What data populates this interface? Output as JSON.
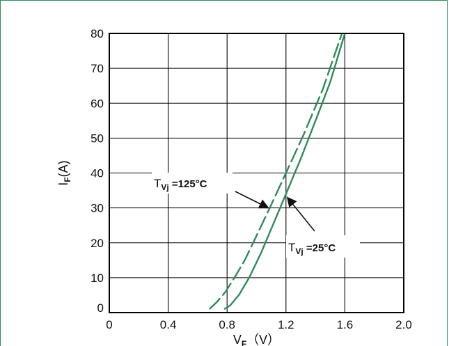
{
  "chart_data": {
    "type": "line",
    "title": "",
    "xlabel": {
      "main": "V",
      "sub": "F",
      "unit": "（V）"
    },
    "ylabel": {
      "main": "I",
      "sub": "F",
      "unit": "(A)"
    },
    "xlim": [
      0,
      2.0
    ],
    "ylim": [
      0,
      80
    ],
    "x_ticks": [
      "0",
      "0.4",
      "0.8",
      "1.2",
      "1.6",
      "2.0"
    ],
    "y_ticks": [
      "0",
      "10",
      "20",
      "30",
      "40",
      "50",
      "60",
      "70",
      "80"
    ],
    "grid": true,
    "series": [
      {
        "name": "Tvj=125°C",
        "style": "dashed",
        "color": "#2e8b57",
        "points": [
          [
            0.68,
            1
          ],
          [
            0.73,
            3
          ],
          [
            0.79,
            6
          ],
          [
            0.85,
            10
          ],
          [
            0.92,
            15
          ],
          [
            1.0,
            22
          ],
          [
            1.09,
            30
          ],
          [
            1.2,
            40
          ],
          [
            1.32,
            51
          ],
          [
            1.45,
            64
          ],
          [
            1.58,
            80
          ]
        ]
      },
      {
        "name": "Tvj=25°C",
        "style": "solid",
        "color": "#2e8b57",
        "points": [
          [
            0.78,
            1
          ],
          [
            0.82,
            2
          ],
          [
            0.88,
            5
          ],
          [
            0.95,
            10
          ],
          [
            1.03,
            17
          ],
          [
            1.11,
            25
          ],
          [
            1.2,
            34
          ],
          [
            1.3,
            44
          ],
          [
            1.41,
            56
          ],
          [
            1.5,
            66
          ],
          [
            1.6,
            80
          ]
        ]
      }
    ],
    "annotations": [
      {
        "label_main": "T",
        "label_sub": "Vj",
        "label_rest": " =125°C",
        "series": "Tvj=125°C",
        "arrow_to": [
          1.08,
          30
        ]
      },
      {
        "label_main": "T",
        "label_sub": "Vj",
        "label_rest": " =25°C",
        "series": "Tvj=25°C",
        "arrow_to": [
          1.2,
          33
        ]
      }
    ]
  }
}
